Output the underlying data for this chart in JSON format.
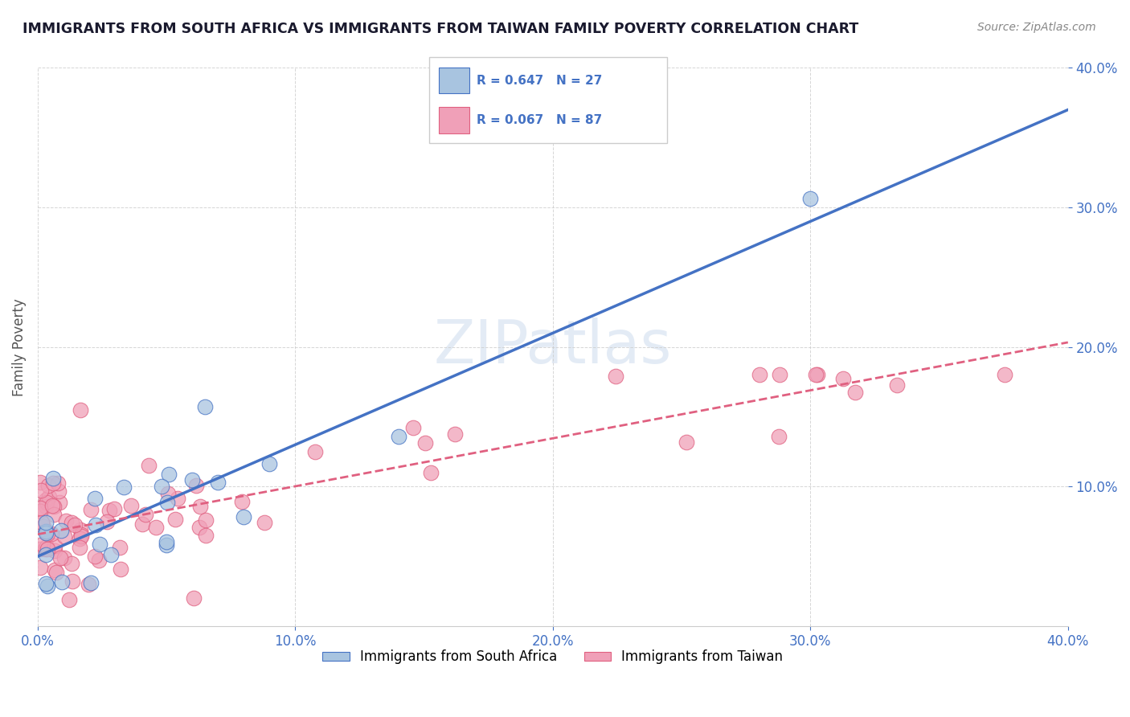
{
  "title": "IMMIGRANTS FROM SOUTH AFRICA VS IMMIGRANTS FROM TAIWAN FAMILY POVERTY CORRELATION CHART",
  "source_text": "Source: ZipAtlas.com",
  "ylabel": "Family Poverty",
  "xlim": [
    0.0,
    0.4
  ],
  "ylim": [
    0.0,
    0.4
  ],
  "xtick_vals": [
    0.0,
    0.1,
    0.2,
    0.3,
    0.4
  ],
  "ytick_vals": [
    0.1,
    0.2,
    0.3,
    0.4
  ],
  "watermark": "ZIPatlas",
  "legend_r1": "R = 0.647",
  "legend_n1": "N = 27",
  "legend_r2": "R = 0.067",
  "legend_n2": "N = 87",
  "color_blue": "#a8c4e0",
  "color_pink": "#f0a0b8",
  "line_blue": "#4472c4",
  "line_pink": "#e06080",
  "scatter_seed": 42
}
